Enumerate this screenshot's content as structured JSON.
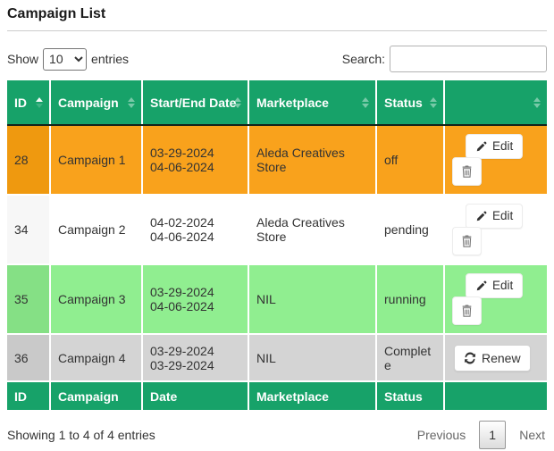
{
  "page": {
    "title": "Campaign List"
  },
  "controls": {
    "show_label": "Show",
    "page_length": "10",
    "entries_label": "entries",
    "search_label": "Search:",
    "search_value": ""
  },
  "table": {
    "columns": [
      {
        "label": "ID",
        "slug": "id",
        "sort": "asc"
      },
      {
        "label": "Campaign",
        "slug": "campaign",
        "sort": "both"
      },
      {
        "label": "Start/End Date",
        "slug": "start-end-date",
        "sort": "both"
      },
      {
        "label": "Marketplace",
        "slug": "marketplace",
        "sort": "both"
      },
      {
        "label": "Status",
        "slug": "status",
        "sort": "both"
      },
      {
        "label": "",
        "slug": "actions",
        "sort": "both"
      }
    ],
    "footer_columns": [
      "ID",
      "Campaign",
      "Date",
      "Marketplace",
      "Status",
      ""
    ],
    "rows": [
      {
        "id": "28",
        "campaign": "Campaign 1",
        "dates": [
          "03-29-2024",
          "04-06-2024"
        ],
        "marketplace": "Aleda Creatives Store",
        "status": "off",
        "actions": [
          "edit",
          "delete"
        ],
        "colors": {
          "row": "#f9a21c",
          "id_cell": "#ef990f"
        }
      },
      {
        "id": "34",
        "campaign": "Campaign 2",
        "dates": [
          "04-02-2024",
          "04-06-2024"
        ],
        "marketplace": "Aleda Creatives Store",
        "status": "pending",
        "actions": [
          "edit",
          "delete"
        ],
        "colors": {
          "row": "#ffffff",
          "id_cell": "#f7f7f7"
        }
      },
      {
        "id": "35",
        "campaign": "Campaign 3",
        "dates": [
          "03-29-2024",
          "04-06-2024"
        ],
        "marketplace": "NIL",
        "status": "running",
        "actions": [
          "edit",
          "delete"
        ],
        "colors": {
          "row": "#90ee90",
          "id_cell": "#85e085"
        }
      },
      {
        "id": "36",
        "campaign": "Campaign 4",
        "dates": [
          "03-29-2024",
          "03-29-2024"
        ],
        "marketplace": "NIL",
        "status": "Complete",
        "actions": [
          "renew"
        ],
        "colors": {
          "row": "#d4d4d4",
          "id_cell": "#c9c9c9"
        }
      }
    ]
  },
  "action_labels": {
    "edit": "Edit",
    "delete": "Delete",
    "renew": "Renew"
  },
  "info": "Showing 1 to 4 of 4 entries",
  "pagination": {
    "previous": "Previous",
    "pages": [
      "1"
    ],
    "current": "1",
    "next": "Next"
  },
  "theme": {
    "header_green": "#17a269",
    "header_text": "#ffffff",
    "row_off": "#f9a21c",
    "row_pending": "#ffffff",
    "row_running": "#90ee90",
    "row_complete": "#d4d4d4",
    "body_text": "#333333"
  }
}
